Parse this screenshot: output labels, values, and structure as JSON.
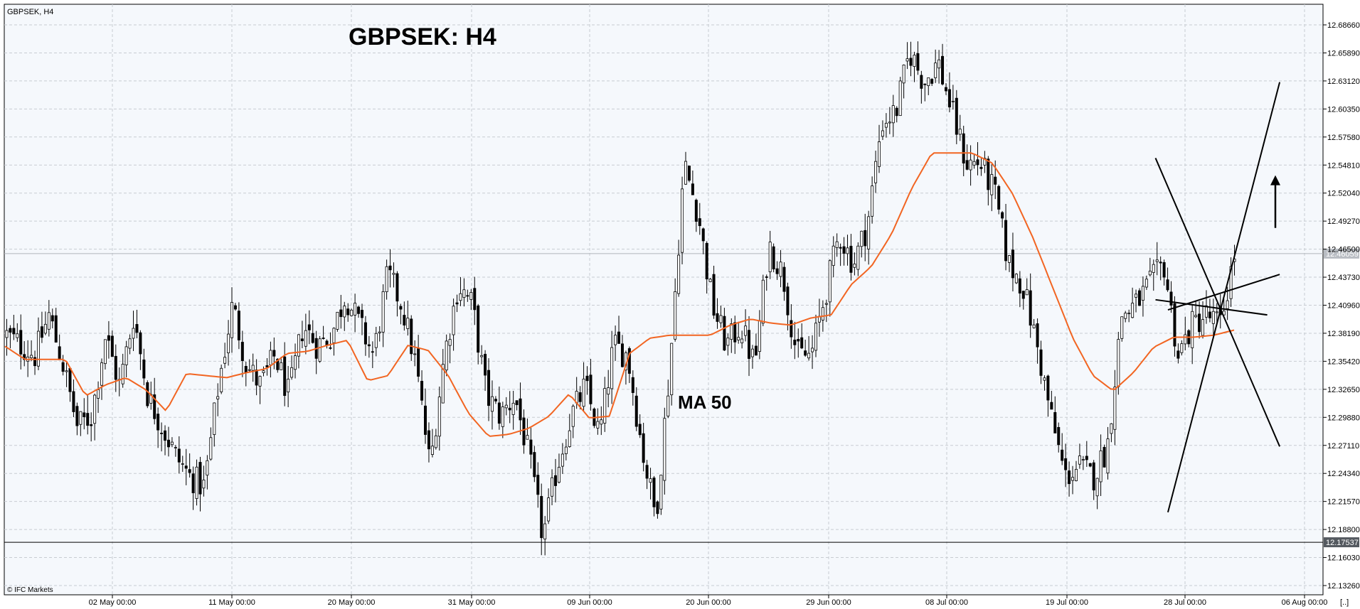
{
  "symbol_label": "GBPSEK, H4",
  "watermark": "© IFC Markets",
  "corner_label": "[..]",
  "chart_data": {
    "type": "candlestick",
    "title": "GBPSEK: H4",
    "indicator_label": "MA 50",
    "ylim": [
      12.1326,
      12.6866
    ],
    "y_ticks": [
      "12.68660",
      "12.65890",
      "12.63120",
      "12.60350",
      "12.57580",
      "12.54810",
      "12.52040",
      "12.49270",
      "12.46500",
      "12.43730",
      "12.40960",
      "12.38190",
      "12.35420",
      "12.32650",
      "12.29880",
      "12.27110",
      "12.24340",
      "12.21570",
      "12.18800",
      "12.16030",
      "12.13260"
    ],
    "x_ticks": [
      "02 May 00:00",
      "11 May 00:00",
      "20 May 00:00",
      "31 May 00:00",
      "09 Jun 00:00",
      "20 Jun 00:00",
      "29 Jun 00:00",
      "08 Jul 00:00",
      "19 Jul 00:00",
      "28 Jul 00:00",
      "06 Aug 00:00"
    ],
    "current_price": "12.46059",
    "support_level": "12.17537",
    "grid": true,
    "colors": {
      "candles": "#000000",
      "ma": "#f26522",
      "background": "#f5f8fc",
      "grid": "#c8ccd2"
    },
    "close_keypoints": [
      12.38,
      12.37,
      12.36,
      12.4,
      12.35,
      12.29,
      12.3,
      12.38,
      12.33,
      12.4,
      12.32,
      12.29,
      12.26,
      12.24,
      12.23,
      12.33,
      12.41,
      12.35,
      12.33,
      12.36,
      12.32,
      12.39,
      12.37,
      12.38,
      12.42,
      12.39,
      12.36,
      12.44,
      12.41,
      12.35,
      12.25,
      12.36,
      12.43,
      12.41,
      12.32,
      12.3,
      12.32,
      12.26,
      12.18,
      12.25,
      12.3,
      12.33,
      12.28,
      12.37,
      12.36,
      12.27,
      12.2,
      12.35,
      12.55,
      12.5,
      12.41,
      12.37,
      12.39,
      12.35,
      12.47,
      12.44,
      12.36,
      12.36,
      12.42,
      12.48,
      12.45,
      12.49,
      12.59,
      12.6,
      12.66,
      12.63,
      12.65,
      12.6,
      12.55,
      12.55,
      12.52,
      12.45,
      12.43,
      12.37,
      12.3,
      12.24,
      12.25,
      12.24,
      12.27,
      12.4,
      12.41,
      12.43,
      12.45,
      12.36,
      12.39,
      12.4,
      12.39,
      12.46
    ],
    "ma_keypoints": [
      12.369,
      12.356,
      12.356,
      12.356,
      12.32,
      12.331,
      12.338,
      12.326,
      12.305,
      12.342,
      12.34,
      12.338,
      12.343,
      12.347,
      12.362,
      12.364,
      12.37,
      12.375,
      12.335,
      12.34,
      12.37,
      12.365,
      12.34,
      12.303,
      12.28,
      12.282,
      12.288,
      12.3,
      12.322,
      12.298,
      12.3,
      12.362,
      12.377,
      12.38,
      12.38,
      12.38,
      12.39,
      12.396,
      12.392,
      12.39,
      12.397,
      12.4,
      12.43,
      12.448,
      12.48,
      12.525,
      12.56,
      12.56,
      12.56,
      12.55,
      12.52,
      12.477,
      12.427,
      12.377,
      12.34,
      12.325,
      12.343,
      12.368,
      12.378,
      12.378,
      12.38,
      12.385
    ],
    "trendlines": [
      {
        "name": "upper-up-line",
        "from": [
          "2016-07-26",
          12.205
        ],
        "to": [
          "2016-08-04",
          12.63
        ]
      },
      {
        "name": "upper-down-line",
        "from": [
          "2016-07-25",
          12.555
        ],
        "to": [
          "2016-08-04",
          12.27
        ]
      },
      {
        "name": "lower-down-line",
        "from": [
          "2016-07-25",
          12.415
        ],
        "to": [
          "2016-08-03",
          12.4
        ]
      },
      {
        "name": "lower-up-line",
        "from": [
          "2016-07-26",
          12.405
        ],
        "to": [
          "2016-08-04",
          12.44
        ]
      }
    ],
    "arrow": {
      "direction": "up",
      "from": 12.486,
      "to": 12.538
    }
  }
}
